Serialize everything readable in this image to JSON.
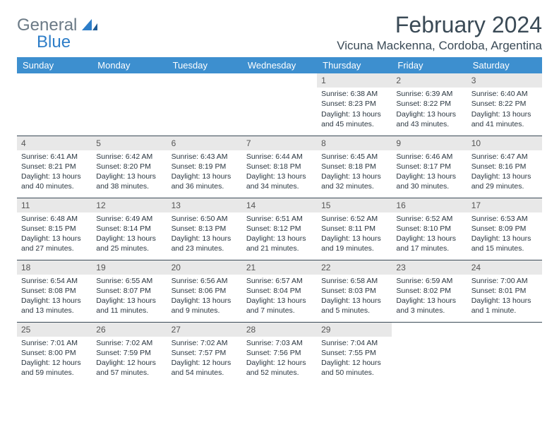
{
  "brand": {
    "part1": "General",
    "part2": "Blue"
  },
  "title": "February 2024",
  "location": "Vicuna Mackenna, Cordoba, Argentina",
  "colors": {
    "header_bg": "#3d8fcf",
    "header_fg": "#ffffff",
    "daynum_bg": "#e8e8e8",
    "text": "#2a3640",
    "rule": "#3a4a56",
    "logo_gray": "#6b7a86",
    "logo_blue": "#2d7dc8"
  },
  "weekdays": [
    "Sunday",
    "Monday",
    "Tuesday",
    "Wednesday",
    "Thursday",
    "Friday",
    "Saturday"
  ],
  "weeks": [
    [
      {
        "empty": true
      },
      {
        "empty": true
      },
      {
        "empty": true
      },
      {
        "empty": true
      },
      {
        "n": "1",
        "sunrise": "Sunrise: 6:38 AM",
        "sunset": "Sunset: 8:23 PM",
        "daylight": "Daylight: 13 hours and 45 minutes."
      },
      {
        "n": "2",
        "sunrise": "Sunrise: 6:39 AM",
        "sunset": "Sunset: 8:22 PM",
        "daylight": "Daylight: 13 hours and 43 minutes."
      },
      {
        "n": "3",
        "sunrise": "Sunrise: 6:40 AM",
        "sunset": "Sunset: 8:22 PM",
        "daylight": "Daylight: 13 hours and 41 minutes."
      }
    ],
    [
      {
        "n": "4",
        "sunrise": "Sunrise: 6:41 AM",
        "sunset": "Sunset: 8:21 PM",
        "daylight": "Daylight: 13 hours and 40 minutes."
      },
      {
        "n": "5",
        "sunrise": "Sunrise: 6:42 AM",
        "sunset": "Sunset: 8:20 PM",
        "daylight": "Daylight: 13 hours and 38 minutes."
      },
      {
        "n": "6",
        "sunrise": "Sunrise: 6:43 AM",
        "sunset": "Sunset: 8:19 PM",
        "daylight": "Daylight: 13 hours and 36 minutes."
      },
      {
        "n": "7",
        "sunrise": "Sunrise: 6:44 AM",
        "sunset": "Sunset: 8:18 PM",
        "daylight": "Daylight: 13 hours and 34 minutes."
      },
      {
        "n": "8",
        "sunrise": "Sunrise: 6:45 AM",
        "sunset": "Sunset: 8:18 PM",
        "daylight": "Daylight: 13 hours and 32 minutes."
      },
      {
        "n": "9",
        "sunrise": "Sunrise: 6:46 AM",
        "sunset": "Sunset: 8:17 PM",
        "daylight": "Daylight: 13 hours and 30 minutes."
      },
      {
        "n": "10",
        "sunrise": "Sunrise: 6:47 AM",
        "sunset": "Sunset: 8:16 PM",
        "daylight": "Daylight: 13 hours and 29 minutes."
      }
    ],
    [
      {
        "n": "11",
        "sunrise": "Sunrise: 6:48 AM",
        "sunset": "Sunset: 8:15 PM",
        "daylight": "Daylight: 13 hours and 27 minutes."
      },
      {
        "n": "12",
        "sunrise": "Sunrise: 6:49 AM",
        "sunset": "Sunset: 8:14 PM",
        "daylight": "Daylight: 13 hours and 25 minutes."
      },
      {
        "n": "13",
        "sunrise": "Sunrise: 6:50 AM",
        "sunset": "Sunset: 8:13 PM",
        "daylight": "Daylight: 13 hours and 23 minutes."
      },
      {
        "n": "14",
        "sunrise": "Sunrise: 6:51 AM",
        "sunset": "Sunset: 8:12 PM",
        "daylight": "Daylight: 13 hours and 21 minutes."
      },
      {
        "n": "15",
        "sunrise": "Sunrise: 6:52 AM",
        "sunset": "Sunset: 8:11 PM",
        "daylight": "Daylight: 13 hours and 19 minutes."
      },
      {
        "n": "16",
        "sunrise": "Sunrise: 6:52 AM",
        "sunset": "Sunset: 8:10 PM",
        "daylight": "Daylight: 13 hours and 17 minutes."
      },
      {
        "n": "17",
        "sunrise": "Sunrise: 6:53 AM",
        "sunset": "Sunset: 8:09 PM",
        "daylight": "Daylight: 13 hours and 15 minutes."
      }
    ],
    [
      {
        "n": "18",
        "sunrise": "Sunrise: 6:54 AM",
        "sunset": "Sunset: 8:08 PM",
        "daylight": "Daylight: 13 hours and 13 minutes."
      },
      {
        "n": "19",
        "sunrise": "Sunrise: 6:55 AM",
        "sunset": "Sunset: 8:07 PM",
        "daylight": "Daylight: 13 hours and 11 minutes."
      },
      {
        "n": "20",
        "sunrise": "Sunrise: 6:56 AM",
        "sunset": "Sunset: 8:06 PM",
        "daylight": "Daylight: 13 hours and 9 minutes."
      },
      {
        "n": "21",
        "sunrise": "Sunrise: 6:57 AM",
        "sunset": "Sunset: 8:04 PM",
        "daylight": "Daylight: 13 hours and 7 minutes."
      },
      {
        "n": "22",
        "sunrise": "Sunrise: 6:58 AM",
        "sunset": "Sunset: 8:03 PM",
        "daylight": "Daylight: 13 hours and 5 minutes."
      },
      {
        "n": "23",
        "sunrise": "Sunrise: 6:59 AM",
        "sunset": "Sunset: 8:02 PM",
        "daylight": "Daylight: 13 hours and 3 minutes."
      },
      {
        "n": "24",
        "sunrise": "Sunrise: 7:00 AM",
        "sunset": "Sunset: 8:01 PM",
        "daylight": "Daylight: 13 hours and 1 minute."
      }
    ],
    [
      {
        "n": "25",
        "sunrise": "Sunrise: 7:01 AM",
        "sunset": "Sunset: 8:00 PM",
        "daylight": "Daylight: 12 hours and 59 minutes."
      },
      {
        "n": "26",
        "sunrise": "Sunrise: 7:02 AM",
        "sunset": "Sunset: 7:59 PM",
        "daylight": "Daylight: 12 hours and 57 minutes."
      },
      {
        "n": "27",
        "sunrise": "Sunrise: 7:02 AM",
        "sunset": "Sunset: 7:57 PM",
        "daylight": "Daylight: 12 hours and 54 minutes."
      },
      {
        "n": "28",
        "sunrise": "Sunrise: 7:03 AM",
        "sunset": "Sunset: 7:56 PM",
        "daylight": "Daylight: 12 hours and 52 minutes."
      },
      {
        "n": "29",
        "sunrise": "Sunrise: 7:04 AM",
        "sunset": "Sunset: 7:55 PM",
        "daylight": "Daylight: 12 hours and 50 minutes."
      },
      {
        "empty": true
      },
      {
        "empty": true
      }
    ]
  ]
}
